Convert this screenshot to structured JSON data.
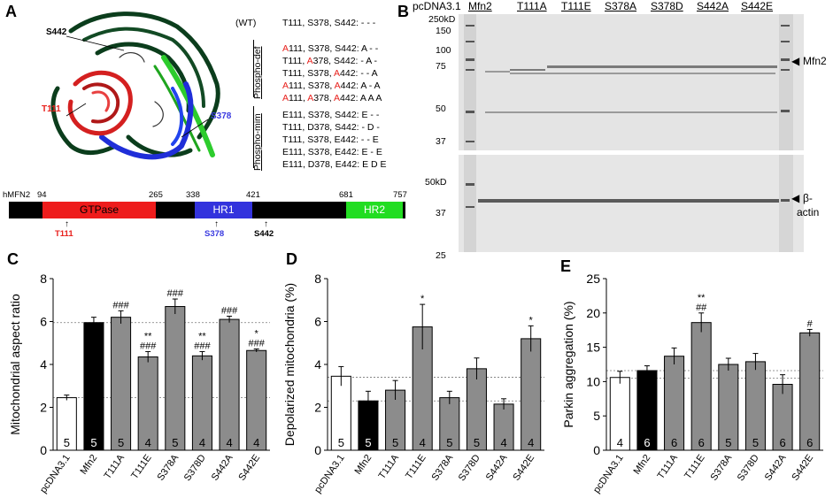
{
  "panels": {
    "A": "A",
    "B": "B",
    "C": "C",
    "D": "D",
    "E": "E"
  },
  "panelA": {
    "structure_labels": {
      "s442": "S442",
      "t111": "T111",
      "s378": "S378"
    },
    "wt": {
      "tag": "(WT)",
      "text": "T111, S378, S442: - - -"
    },
    "phospho_def_label": "Phospho-def",
    "phospho_mim_label": "Phospho-mim",
    "phospho_def": [
      {
        "a": "A",
        "b": "111, S378, S442: A - -"
      },
      {
        "a": "T111, ",
        "r": "A",
        "b": "378, S442: - A -"
      },
      {
        "a": "T111, S378, ",
        "r": "A",
        "b": "442: - - A"
      },
      {
        "r": "A",
        "b": "111, S378, ",
        "r2": "A",
        "c": "442: A - A"
      },
      {
        "r": "A",
        "b": "111, ",
        "r2": "A",
        "c": "378, ",
        "r3": "A",
        "d": "442: A A A"
      }
    ],
    "phospho_mim": [
      "E111, S378, S442: E - -",
      "T111, D378, S442: - D -",
      "T111, S378, E442: - - E",
      "E111, S378, E442: E - E",
      "E111, D378, E442: E D E"
    ],
    "domain_bar": {
      "protein": "hMFN2",
      "positions": [
        "94",
        "265",
        "338",
        "421",
        "681",
        "757"
      ],
      "domains": [
        "GTPase",
        "HR1",
        "HR2"
      ],
      "sites": [
        "T111",
        "S378",
        "S442"
      ]
    }
  },
  "panelB": {
    "lanes": [
      "pcDNA3.1",
      "Mfn2",
      "T111A",
      "T111E",
      "S378A",
      "S378D",
      "S442A",
      "S442E"
    ],
    "top_markers": [
      "250kD",
      "150",
      "100",
      "75",
      "50",
      "37"
    ],
    "bottom_markers": [
      "50kD",
      "37",
      "25"
    ],
    "top_band": "Mfn2",
    "bottom_band_1": "β-",
    "bottom_band_2": "actin"
  },
  "chart_data": [
    {
      "type": "bar",
      "panel": "C",
      "categories": [
        "pcDNA3.1",
        "Mfn2",
        "T111A",
        "T111E",
        "S378A",
        "S378D",
        "S442A",
        "S442E"
      ],
      "values": [
        2.45,
        5.95,
        6.2,
        4.35,
        6.7,
        4.4,
        6.1,
        4.65
      ],
      "errors": [
        0.12,
        0.25,
        0.3,
        0.25,
        0.35,
        0.2,
        0.15,
        0.07
      ],
      "n": [
        "5",
        "5",
        "5",
        "4",
        "5",
        "4",
        "4",
        "4"
      ],
      "annotations": [
        "",
        "",
        "###",
        "**\n###",
        "###",
        "**\n###",
        "###",
        "*\n###"
      ],
      "ylabel": "Mitochondrial aspect ratio",
      "ylim": [
        0,
        8
      ],
      "yticks": [
        "0",
        "2",
        "4",
        "6",
        "8"
      ],
      "reference_lines": [
        5.95,
        2.45
      ]
    },
    {
      "type": "bar",
      "panel": "D",
      "categories": [
        "pcDNA3.1",
        "Mfn2",
        "T111A",
        "T111E",
        "S378A",
        "S378D",
        "S442A",
        "S442E"
      ],
      "values": [
        3.45,
        2.3,
        2.8,
        5.75,
        2.45,
        3.8,
        2.15,
        5.2
      ],
      "errors": [
        0.45,
        0.45,
        0.45,
        1.05,
        0.3,
        0.5,
        0.25,
        0.6
      ],
      "n": [
        "5",
        "5",
        "5",
        "4",
        "5",
        "5",
        "4",
        "4"
      ],
      "annotations": [
        "",
        "",
        "",
        "*",
        "",
        "",
        "",
        "*"
      ],
      "ylabel": "Depolarized mitochondria (%)",
      "ylim": [
        0,
        8
      ],
      "yticks": [
        "0",
        "2",
        "4",
        "6",
        "8"
      ],
      "reference_lines": [
        3.4,
        2.3
      ]
    },
    {
      "type": "bar",
      "panel": "E",
      "categories": [
        "pcDNA3.1",
        "Mfn2",
        "T111A",
        "T111E",
        "S378A",
        "S378D",
        "S442A",
        "S442E"
      ],
      "values": [
        10.6,
        11.6,
        13.7,
        18.6,
        12.5,
        12.9,
        9.6,
        17.1
      ],
      "errors": [
        0.9,
        0.7,
        1.2,
        1.4,
        0.9,
        1.2,
        1.4,
        0.5
      ],
      "n": [
        "4",
        "6",
        "6",
        "6",
        "5",
        "5",
        "6",
        "6"
      ],
      "annotations": [
        "",
        "",
        "",
        "**\n##",
        "",
        "",
        "",
        "#"
      ],
      "ylabel": "Parkin aggregation (%)",
      "ylim": [
        0,
        25
      ],
      "yticks": [
        "0",
        "5",
        "10",
        "15",
        "20",
        "25"
      ],
      "reference_lines": [
        11.6,
        10.5
      ]
    }
  ],
  "colors": {
    "white_bar": "#ffffff",
    "black_bar": "#000000",
    "gray_bar": "#8c8c8c",
    "gtpase": "#ee1c1c",
    "hr1": "#3333dd",
    "hr2": "#22dd22"
  }
}
